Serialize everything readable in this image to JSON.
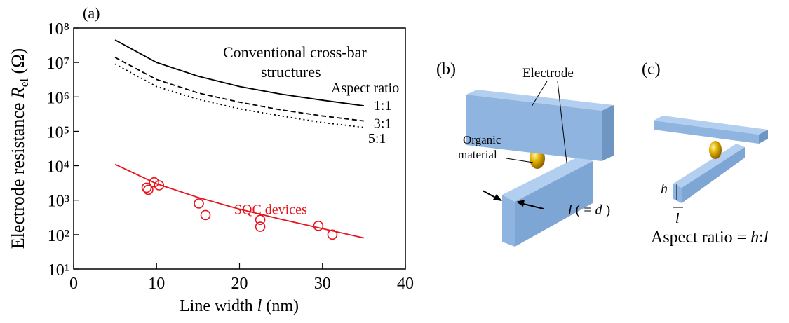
{
  "chart_data": {
    "type": "line",
    "panel_label": "(a)",
    "ylabel": {
      "text": "Electrode resistance ",
      "symbol": "R",
      "subscript": "el",
      "unit": " (Ω)"
    },
    "xlabel": {
      "text": "Line width ",
      "symbol": "l",
      "unit": " (nm)"
    },
    "annotations": [
      "Conventional cross-bar",
      "structures",
      "Aspect ratio"
    ],
    "xlim": [
      0,
      40
    ],
    "xticks": [
      0,
      10,
      20,
      30,
      40
    ],
    "ylim": [
      10,
      100000000
    ],
    "log_y": true,
    "yticks": [
      {
        "value": 10,
        "label": "10¹"
      },
      {
        "value": 100,
        "label": "10²"
      },
      {
        "value": 1000,
        "label": "10³"
      },
      {
        "value": 10000,
        "label": "10⁴"
      },
      {
        "value": 100000,
        "label": "10⁵"
      },
      {
        "value": 1000000,
        "label": "10⁶"
      },
      {
        "value": 10000000,
        "label": "10⁷"
      },
      {
        "value": 100000000,
        "label": "10⁸"
      }
    ],
    "series": [
      {
        "name": "1:1",
        "color": "#000000",
        "dash": "solid",
        "x": [
          5,
          10,
          15,
          20,
          25,
          30,
          35
        ],
        "values": [
          45000000,
          10000000,
          4000000,
          2000000,
          1200000,
          800000,
          550000
        ]
      },
      {
        "name": "3:1",
        "color": "#000000",
        "dash": "dashed",
        "x": [
          5,
          10,
          15,
          20,
          25,
          30,
          35
        ],
        "values": [
          14000000,
          3200000,
          1300000,
          700000,
          420000,
          280000,
          200000
        ]
      },
      {
        "name": "5:1",
        "color": "#000000",
        "dash": "dotted",
        "x": [
          5,
          10,
          15,
          20,
          25,
          30,
          35
        ],
        "values": [
          9000000,
          2000000,
          850000,
          450000,
          280000,
          180000,
          130000
        ]
      },
      {
        "name": "SQC devices",
        "color": "#e8141b",
        "dash": "solid",
        "x": [
          5,
          10,
          15,
          20,
          25,
          30,
          35
        ],
        "values": [
          11000,
          3000,
          1200,
          550,
          280,
          150,
          80
        ]
      },
      {
        "type": "scatter",
        "color": "#e8141b",
        "x": [
          8.8,
          9,
          9.7,
          10.3,
          15.1,
          15.9,
          22.5,
          22.5,
          29.5,
          31.2
        ],
        "values": [
          2300,
          2000,
          3300,
          2700,
          800,
          370,
          270,
          170,
          180,
          100
        ]
      }
    ]
  },
  "diagrams": {
    "b": {
      "panel_label": "(b)",
      "electrode": "Electrode",
      "organic": [
        "Organic",
        "material"
      ],
      "width": {
        "symbol": "l",
        "rest": " ( = ",
        "d": "d",
        "close": " )"
      }
    },
    "c": {
      "panel_label": "(c)",
      "h": "h",
      "l": "l",
      "caption": {
        "text": "Aspect ratio = ",
        "h": "h",
        "sep": ":",
        "l": "l"
      }
    }
  }
}
